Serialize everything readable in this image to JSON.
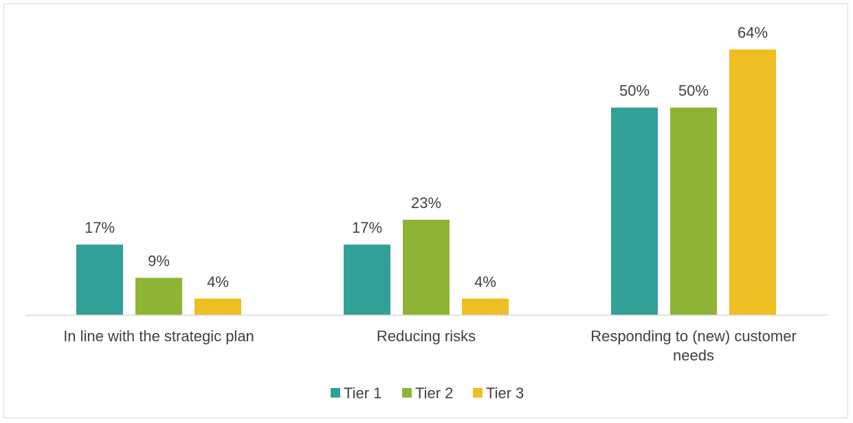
{
  "chart_data": {
    "type": "bar",
    "categories": [
      [
        "In line with the strategic plan"
      ],
      [
        "Reducing risks"
      ],
      [
        "Responding to (new) customer",
        "needs"
      ]
    ],
    "series": [
      {
        "name": "Tier 1",
        "color": "#31a097",
        "values": [
          17,
          17,
          50
        ]
      },
      {
        "name": "Tier 2",
        "color": "#8db434",
        "values": [
          9,
          23,
          50
        ]
      },
      {
        "name": "Tier 3",
        "color": "#efbe22",
        "values": [
          4,
          4,
          64
        ]
      }
    ],
    "value_suffix": "%",
    "ylim": [
      0,
      64
    ],
    "grid": false,
    "legend": "bottom",
    "title": "",
    "xlabel": "",
    "ylabel": ""
  }
}
